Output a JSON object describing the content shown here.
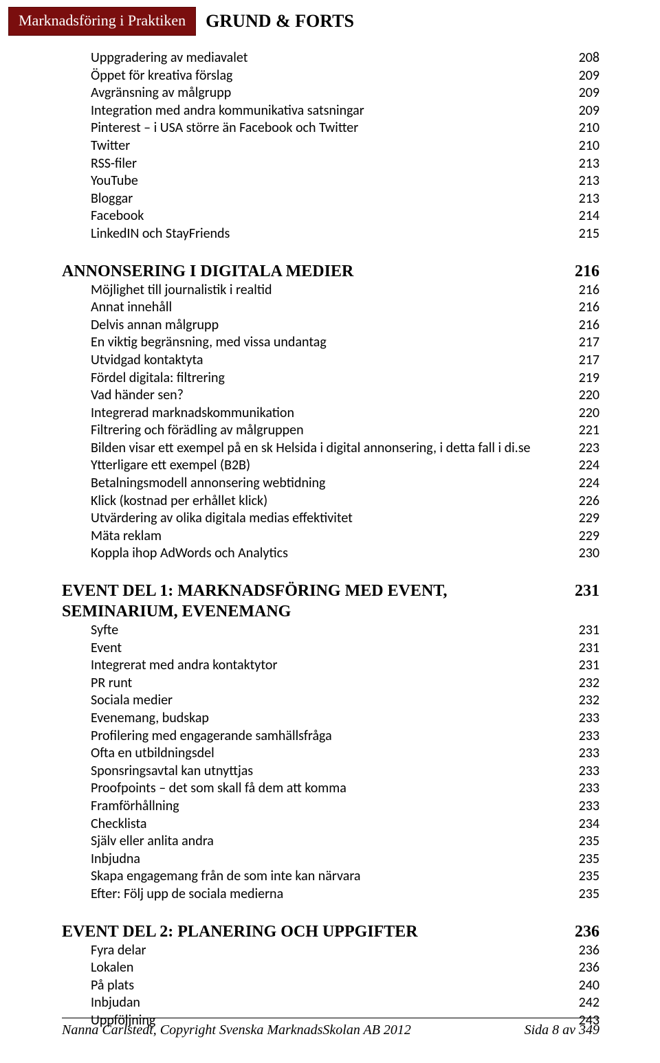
{
  "header": {
    "badge": "Marknadsföring i Praktiken",
    "title": "GRUND & FORTS"
  },
  "sections": [
    {
      "title": null,
      "page": null,
      "rows": [
        {
          "label": "Uppgradering av mediavalet",
          "page": "208"
        },
        {
          "label": "Öppet för kreativa förslag",
          "page": "209"
        },
        {
          "label": "Avgränsning av målgrupp",
          "page": "209"
        },
        {
          "label": "Integration med andra kommunikativa satsningar",
          "page": "209"
        },
        {
          "label": "Pinterest – i USA större än Facebook och Twitter",
          "page": "210"
        },
        {
          "label": "Twitter",
          "page": "210"
        },
        {
          "label": "RSS-filer",
          "page": "213"
        },
        {
          "label": "YouTube",
          "page": "213"
        },
        {
          "label": "Bloggar",
          "page": "213"
        },
        {
          "label": "Facebook",
          "page": "214"
        },
        {
          "label": "LinkedIN och StayFriends",
          "page": "215"
        }
      ]
    },
    {
      "title": "ANNONSERING I DIGITALA MEDIER",
      "page": "216",
      "rows": [
        {
          "label": "Möjlighet till journalistik i realtid",
          "page": "216"
        },
        {
          "label": "Annat innehåll",
          "page": "216"
        },
        {
          "label": "Delvis annan målgrupp",
          "page": "216"
        },
        {
          "label": "En viktig begränsning, med vissa undantag",
          "page": "217"
        },
        {
          "label": "Utvidgad kontaktyta",
          "page": "217"
        },
        {
          "label": "Fördel digitala: filtrering",
          "page": "219"
        },
        {
          "label": "Vad händer sen?",
          "page": "220"
        },
        {
          "label": "Integrerad marknadskommunikation",
          "page": "220"
        },
        {
          "label": "Filtrering och förädling av målgruppen",
          "page": "221"
        },
        {
          "label": "Bilden visar ett exempel på en sk Helsida i digital annonsering, i detta fall i di.se",
          "page": "223"
        },
        {
          "label": "Ytterligare ett exempel (B2B)",
          "page": "224"
        },
        {
          "label": "Betalningsmodell annonsering webtidning",
          "page": "224"
        },
        {
          "label": "Klick (kostnad per erhållet klick)",
          "page": "226"
        },
        {
          "label": "Utvärdering av olika digitala medias effektivitet",
          "page": "229"
        },
        {
          "label": "Mäta reklam",
          "page": "229"
        },
        {
          "label": "Koppla ihop AdWords och Analytics",
          "page": "230"
        }
      ]
    },
    {
      "title": "EVENT DEL 1: MARKNADSFÖRING MED EVENT, SEMINARIUM, EVENEMANG",
      "page": "231",
      "rows": [
        {
          "label": "Syfte",
          "page": "231"
        },
        {
          "label": "Event",
          "page": "231"
        },
        {
          "label": "Integrerat med andra kontaktytor",
          "page": "231"
        },
        {
          "label": "PR runt",
          "page": "232"
        },
        {
          "label": "Sociala medier",
          "page": "232"
        },
        {
          "label": "Evenemang, budskap",
          "page": "233"
        },
        {
          "label": "Profilering med engagerande samhällsfråga",
          "page": "233"
        },
        {
          "label": "Ofta en utbildningsdel",
          "page": "233"
        },
        {
          "label": "Sponsringsavtal kan utnyttjas",
          "page": "233"
        },
        {
          "label": "Proofpoints – det som skall få dem att komma",
          "page": "233"
        },
        {
          "label": "Framförhållning",
          "page": "233"
        },
        {
          "label": "Checklista",
          "page": "234"
        },
        {
          "label": "Själv eller anlita andra",
          "page": "235"
        },
        {
          "label": "Inbjudna",
          "page": "235"
        },
        {
          "label": "Skapa engagemang från de som inte kan närvara",
          "page": "235"
        },
        {
          "label": "Efter: Följ upp de sociala medierna",
          "page": "235"
        }
      ]
    },
    {
      "title": "EVENT DEL 2: PLANERING OCH UPPGIFTER",
      "page": "236",
      "rows": [
        {
          "label": "Fyra delar",
          "page": "236"
        },
        {
          "label": "Lokalen",
          "page": "236"
        },
        {
          "label": "På plats",
          "page": "240"
        },
        {
          "label": "Inbjudan",
          "page": "242"
        },
        {
          "label": "Uppföljning",
          "page": "243"
        }
      ]
    }
  ],
  "footer": {
    "left": "Nanna Carlstedt, Copyright Svenska MarknadsSkolan AB 2012",
    "right": "Sida 8 av 349"
  },
  "style": {
    "badge_bg": "#7a0e0e",
    "badge_text": "#ffffff",
    "body_font_size": 20,
    "section_font_size": 24,
    "header_badge_font_size": 22,
    "header_title_font_size": 26
  }
}
